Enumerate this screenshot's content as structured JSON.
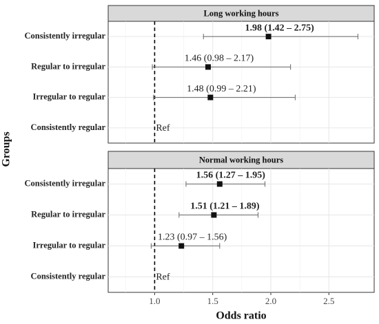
{
  "chart_data": [
    {
      "type": "forest",
      "title": "Long working hours",
      "y_label": "Groups",
      "categories": [
        "Consistently irregular",
        "Regular to irregular",
        "Irregular to regular",
        "Consistently regular"
      ],
      "values": [
        1.98,
        1.46,
        1.48,
        null
      ],
      "lower": [
        1.42,
        0.98,
        0.99,
        null
      ],
      "upper": [
        2.75,
        2.17,
        2.21,
        null
      ],
      "value_labels": [
        "1.98 (1.42 – 2.75)",
        "1.46 (0.98 – 2.17)",
        "1.48 (0.99 – 2.21)",
        "Ref"
      ],
      "bold": [
        true,
        false,
        false,
        false
      ],
      "ref_line": 1,
      "color": "#111111",
      "xlim": [
        0.6,
        2.89
      ],
      "xticks": [
        1,
        1.5,
        2,
        2.5
      ],
      "grid": true
    },
    {
      "type": "forest",
      "title": "Normal working hours",
      "x_label": "Odds ratio",
      "categories": [
        "Consistently irregular",
        "Regular to irregular",
        "Irregular to regular",
        "Consistently regular"
      ],
      "values": [
        1.56,
        1.51,
        1.23,
        null
      ],
      "lower": [
        1.27,
        1.21,
        0.97,
        null
      ],
      "upper": [
        1.95,
        1.89,
        1.56,
        null
      ],
      "value_labels": [
        "1.56 (1.27 – 1.95)",
        "1.51 (1.21 – 1.89)",
        "1.23 (0.97 – 1.56)",
        "Ref"
      ],
      "bold": [
        true,
        true,
        false,
        false
      ],
      "ref_line": 1,
      "color": "#111111",
      "xlim": [
        0.6,
        2.89
      ],
      "xticks": [
        {
          "value": 1,
          "label": "1.0"
        },
        {
          "value": 1.5,
          "label": "1.5"
        },
        {
          "value": 2,
          "label": "2.0"
        },
        {
          "value": 2.5,
          "label": "2.5"
        }
      ],
      "grid": true
    }
  ]
}
